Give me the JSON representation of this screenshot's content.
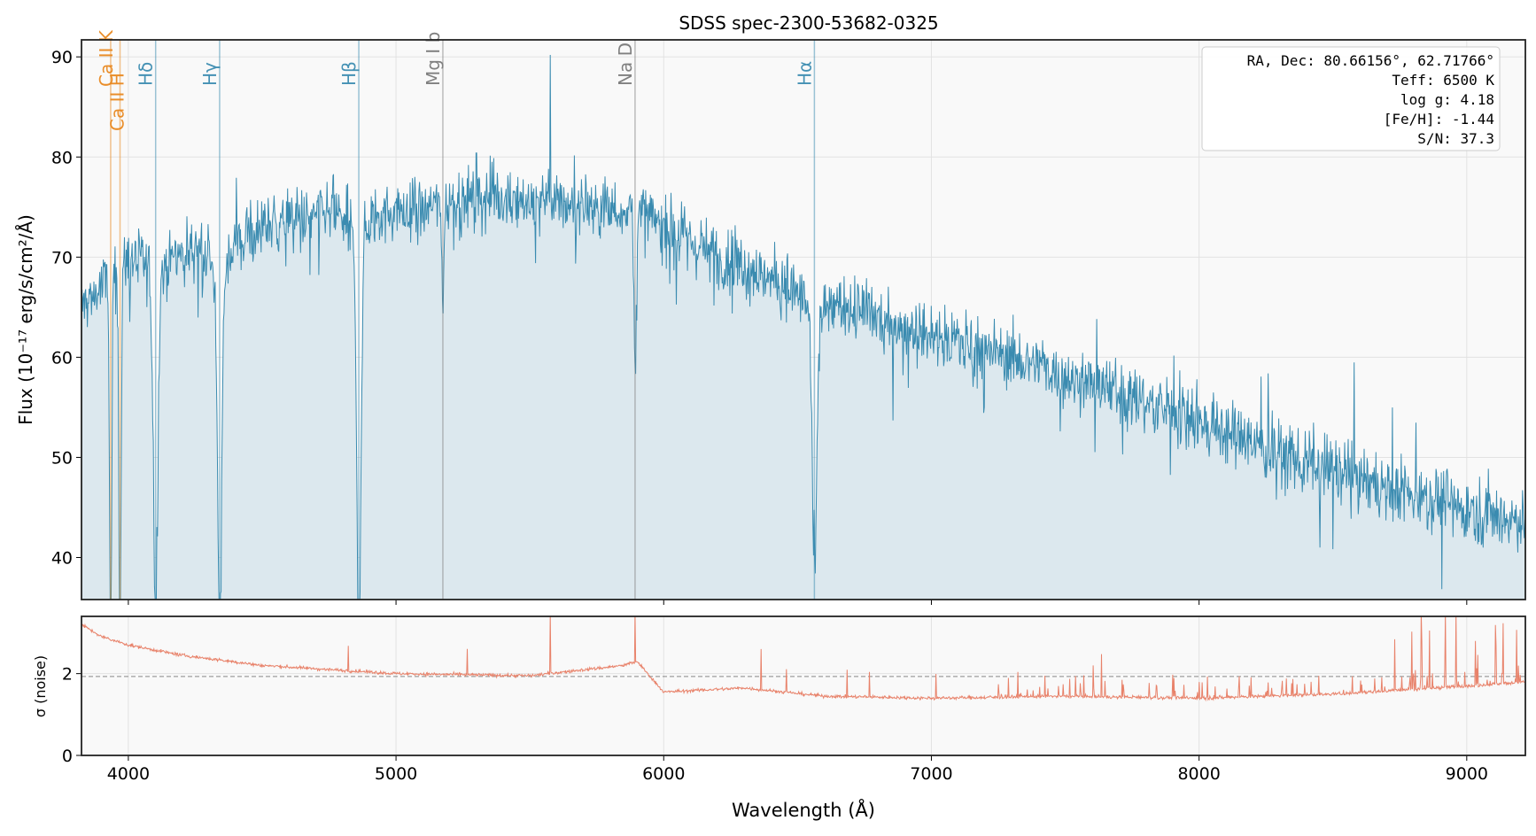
{
  "chart_data": {
    "type": "line",
    "title": "SDSS spec-2300-53682-0325",
    "xlabel": "Wavelength (Å)",
    "xlim": [
      3825,
      9219
    ],
    "x_ticks": [
      4000,
      5000,
      6000,
      7000,
      8000,
      9000
    ],
    "panels": [
      {
        "name": "flux",
        "ylabel": "Flux (10⁻¹⁷ erg/s/cm²/Å)",
        "ylim": [
          35.8,
          91.7
        ],
        "y_ticks": [
          40,
          50,
          60,
          70,
          80,
          90
        ],
        "color": "#3a8bb0",
        "fill_color": "#dce8ee",
        "continuum_x": [
          3825,
          3900,
          4000,
          4100,
          4200,
          4300,
          4400,
          4500,
          4600,
          4700,
          4800,
          4900,
          5000,
          5100,
          5200,
          5300,
          5400,
          5500,
          5600,
          5700,
          5800,
          5900,
          6000,
          6100,
          6200,
          6300,
          6400,
          6500,
          6600,
          6700,
          6800,
          6900,
          7000,
          7200,
          7400,
          7600,
          7800,
          8000,
          8200,
          8400,
          8600,
          8800,
          9000,
          9219
        ],
        "continuum_y": [
          65,
          67,
          70,
          71,
          71,
          71.5,
          72,
          73,
          73.5,
          74,
          75,
          75,
          74.5,
          75,
          75.5,
          76,
          76,
          75.5,
          75.5,
          75.5,
          75,
          74.5,
          73,
          71.5,
          70,
          69,
          68,
          67,
          65.8,
          65,
          64,
          63,
          62.5,
          60.8,
          59.2,
          57.5,
          55.5,
          53.5,
          51.5,
          49.5,
          48,
          46.5,
          45,
          43.5
        ],
        "noise_amplitude": 1.6,
        "lines": [
          {
            "label": "Ca II K",
            "wavelength": 3934,
            "depth": 38,
            "color": "#e8871e"
          },
          {
            "label": "Ca II H",
            "wavelength": 3969,
            "depth": 38,
            "color": "#e8871e"
          },
          {
            "label": "Hδ",
            "wavelength": 4102,
            "depth": 32,
            "color": "#3a8bb0"
          },
          {
            "label": "Hγ",
            "wavelength": 4341,
            "depth": 35,
            "color": "#3a8bb0"
          },
          {
            "label": "Hβ",
            "wavelength": 4861,
            "depth": 37,
            "color": "#3a8bb0"
          },
          {
            "label": "Mg I b",
            "wavelength": 5175,
            "depth": 8,
            "color": "#808080"
          },
          {
            "label": "Na D",
            "wavelength": 5893,
            "depth": 16,
            "color": "#808080"
          },
          {
            "label": "Hα",
            "wavelength": 6563,
            "depth": 26,
            "color": "#3a8bb0"
          }
        ],
        "spikes": [
          {
            "x": 5577,
            "y": 90.2
          },
          {
            "x": 5300,
            "y": 80.4
          }
        ]
      },
      {
        "name": "noise",
        "ylabel": "σ (noise)",
        "ylim": [
          0,
          3.4
        ],
        "y_ticks": [
          0,
          2
        ],
        "color": "#e8826a",
        "reference_line": 1.93,
        "sigma_x": [
          3825,
          3900,
          4000,
          4200,
          4500,
          5000,
          5500,
          5850,
          5900,
          6000,
          6300,
          6600,
          7000,
          7500,
          8000,
          8500,
          9000,
          9219
        ],
        "sigma_y": [
          3.2,
          2.9,
          2.7,
          2.45,
          2.2,
          2.0,
          1.95,
          2.2,
          2.3,
          1.55,
          1.65,
          1.45,
          1.4,
          1.45,
          1.4,
          1.5,
          1.7,
          1.8
        ],
        "spikes": [
          {
            "x": 5577,
            "y": 3.5
          },
          {
            "x": 5893,
            "y": 3.5
          },
          {
            "x": 6363,
            "y": 2.6
          },
          {
            "x": 7605,
            "y": 2.2
          },
          {
            "x": 8830,
            "y": 3.5
          },
          {
            "x": 8920,
            "y": 3.5
          },
          {
            "x": 8960,
            "y": 3.5
          },
          {
            "x": 9110,
            "y": 2.7
          }
        ]
      }
    ],
    "info_box": {
      "position": "top-right",
      "lines": [
        "RA, Dec: 80.66156°, 62.71766°",
        "Teff: 6500 K",
        "log g: 4.18",
        "[Fe/H]: -1.44",
        "S/N: 37.3"
      ]
    }
  }
}
